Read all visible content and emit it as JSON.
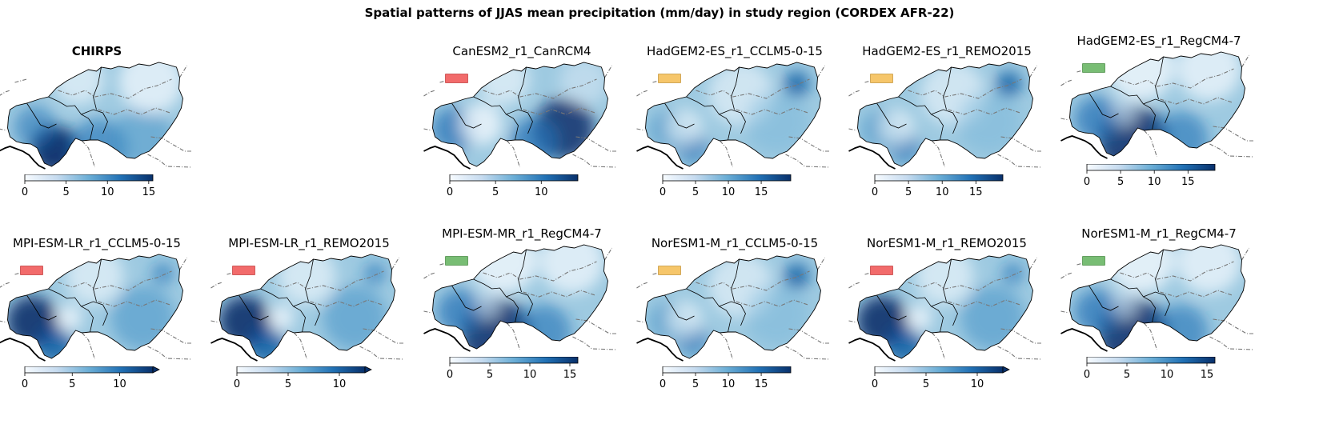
{
  "figure": {
    "title": "Spatial patterns of JJAS mean precipitation (mm/day) in study region (CORDEX AFR-22)"
  },
  "colors": {
    "flag_red": "#f26b6b",
    "flag_orange": "#f6c66a",
    "flag_green": "#78bd74",
    "cmap_low": "#f7fbff",
    "cmap_high": "#08306b"
  },
  "panels": [
    {
      "title": "CHIRPS",
      "bold": true,
      "flag": null,
      "cbar_max": 15.5,
      "ticks": [
        "0",
        "5",
        "10",
        "15"
      ],
      "extend": false,
      "pattern": "chirps"
    },
    {
      "title": "CanESM2_r1_CanRCM4",
      "bold": false,
      "flag": "red",
      "cbar_max": 14,
      "ticks": [
        "0",
        "5",
        "10"
      ],
      "extend": false,
      "pattern": "east"
    },
    {
      "title": "HadGEM2-ES_r1_CCLM5-0-15",
      "bold": false,
      "flag": "orange",
      "cbar_max": 19.5,
      "ticks": [
        "0",
        "5",
        "10",
        "15"
      ],
      "extend": false,
      "pattern": "light"
    },
    {
      "title": "HadGEM2-ES_r1_REMO2015",
      "bold": false,
      "flag": "orange",
      "cbar_max": 19,
      "ticks": [
        "0",
        "5",
        "10",
        "15"
      ],
      "extend": false,
      "pattern": "light"
    },
    {
      "title": "HadGEM2-ES_r1_RegCM4-7",
      "bold": false,
      "flag": "green",
      "cbar_max": 19,
      "ticks": [
        "0",
        "5",
        "10",
        "15"
      ],
      "extend": false,
      "pattern": "south"
    },
    {
      "title": "MPI-ESM-LR_r1_CCLM5-0-15",
      "bold": false,
      "flag": "red",
      "cbar_max": 13.5,
      "ticks": [
        "0",
        "5",
        "10"
      ],
      "extend": true,
      "pattern": "west"
    },
    {
      "title": "MPI-ESM-LR_r1_REMO2015",
      "bold": false,
      "flag": "red",
      "cbar_max": 12.5,
      "ticks": [
        "0",
        "5",
        "10"
      ],
      "extend": true,
      "pattern": "west"
    },
    {
      "title": "MPI-ESM-MR_r1_RegCM4-7",
      "bold": false,
      "flag": "green",
      "cbar_max": 16,
      "ticks": [
        "0",
        "5",
        "10",
        "15"
      ],
      "extend": false,
      "pattern": "south"
    },
    {
      "title": "NorESM1-M_r1_CCLM5-0-15",
      "bold": false,
      "flag": "orange",
      "cbar_max": 19.5,
      "ticks": [
        "0",
        "5",
        "10",
        "15"
      ],
      "extend": false,
      "pattern": "light"
    },
    {
      "title": "NorESM1-M_r1_REMO2015",
      "bold": false,
      "flag": "red",
      "cbar_max": 12.5,
      "ticks": [
        "0",
        "5",
        "10"
      ],
      "extend": true,
      "pattern": "west"
    },
    {
      "title": "NorESM1-M_r1_RegCM4-7",
      "bold": false,
      "flag": "green",
      "cbar_max": 16,
      "ticks": [
        "0",
        "5",
        "10",
        "15"
      ],
      "extend": false,
      "pattern": "south"
    }
  ]
}
